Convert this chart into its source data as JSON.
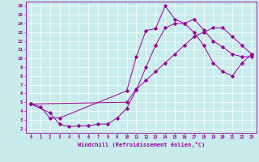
{
  "xlabel": "Windchill (Refroidissement éolien,°C)",
  "bg_color": "#c8ecec",
  "line_color": "#990099",
  "grid_color": "#ffffff",
  "xlim": [
    -0.5,
    23.5
  ],
  "ylim": [
    1.5,
    16.5
  ],
  "xticks": [
    0,
    1,
    2,
    3,
    4,
    5,
    6,
    7,
    8,
    9,
    10,
    11,
    12,
    13,
    14,
    15,
    16,
    17,
    18,
    19,
    20,
    21,
    22,
    23
  ],
  "yticks": [
    2,
    3,
    4,
    5,
    6,
    7,
    8,
    9,
    10,
    11,
    12,
    13,
    14,
    15,
    16
  ],
  "line1_x": [
    0,
    1,
    2,
    3,
    10,
    11,
    12,
    13,
    14,
    15,
    16,
    17,
    18,
    19,
    20,
    21,
    22,
    23
  ],
  "line1_y": [
    4.8,
    4.5,
    3.2,
    3.2,
    6.3,
    10.2,
    13.2,
    13.4,
    16.0,
    14.5,
    14.0,
    14.5,
    13.3,
    12.0,
    11.3,
    10.5,
    10.2,
    10.2
  ],
  "line2_x": [
    0,
    2,
    3,
    4,
    5,
    6,
    7,
    8,
    9,
    10,
    11,
    12,
    13,
    14,
    15,
    16,
    17,
    18,
    19,
    20,
    21,
    22,
    23
  ],
  "line2_y": [
    4.8,
    3.8,
    2.5,
    2.2,
    2.3,
    2.3,
    2.5,
    2.5,
    3.2,
    4.3,
    6.4,
    9.0,
    11.5,
    13.5,
    14.0,
    14.0,
    13.0,
    11.5,
    9.5,
    8.5,
    8.0,
    9.5,
    10.5
  ],
  "line3_x": [
    0,
    10,
    11,
    12,
    13,
    14,
    15,
    16,
    17,
    18,
    19,
    20,
    21,
    22,
    23
  ],
  "line3_y": [
    4.8,
    5.0,
    6.5,
    7.5,
    8.5,
    9.5,
    10.5,
    11.5,
    12.5,
    13.0,
    13.5,
    13.5,
    12.5,
    11.5,
    10.5
  ]
}
